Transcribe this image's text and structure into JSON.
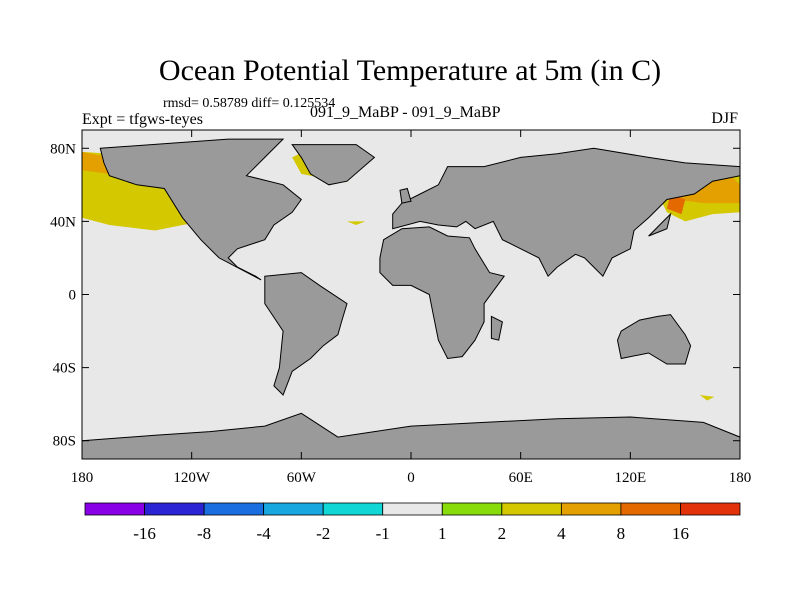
{
  "chart_data": {
    "type": "heatmap",
    "title": "Ocean Potential Temperature at 5m (in C)",
    "stats": "rmsd= 0.58789 diff= 0.125534",
    "expt": "Expt = tfgws-teyes",
    "subtitle": "091_9_MaBP - 091_9_MaBP",
    "season": "DJF",
    "x_range": [
      -180,
      180
    ],
    "y_range": [
      -90,
      90
    ],
    "x_ticks": [
      {
        "value": -180,
        "label": "180"
      },
      {
        "value": -120,
        "label": "120W"
      },
      {
        "value": -60,
        "label": "60W"
      },
      {
        "value": 0,
        "label": "0"
      },
      {
        "value": 60,
        "label": "60E"
      },
      {
        "value": 120,
        "label": "120E"
      },
      {
        "value": 180,
        "label": "180"
      }
    ],
    "y_ticks": [
      {
        "value": 80,
        "label": "80N"
      },
      {
        "value": 40,
        "label": "40N"
      },
      {
        "value": 0,
        "label": "0"
      },
      {
        "value": -40,
        "label": "40S"
      },
      {
        "value": -80,
        "label": "80S"
      }
    ],
    "colorbar": {
      "levels": [
        "-16",
        "-8",
        "-4",
        "-2",
        "-1",
        "1",
        "2",
        "4",
        "8",
        "16"
      ],
      "colors": [
        "#8a00e6",
        "#2a24d4",
        "#1a6ee0",
        "#19a7df",
        "#11d6d6",
        "#e8e8e8",
        "#87dc0a",
        "#d4c800",
        "#e3a000",
        "#e46a00",
        "#e2320a"
      ]
    },
    "land_color": "#9a9a9a",
    "ocean_color": "#e8e8e8",
    "landmasses": [
      {
        "name": "North America",
        "points": [
          [
            -170,
            80
          ],
          [
            -100,
            85
          ],
          [
            -70,
            85
          ],
          [
            -80,
            75
          ],
          [
            -90,
            65
          ],
          [
            -70,
            60
          ],
          [
            -60,
            52
          ],
          [
            -65,
            45
          ],
          [
            -75,
            38
          ],
          [
            -80,
            30
          ],
          [
            -95,
            25
          ],
          [
            -100,
            20
          ],
          [
            -95,
            15
          ],
          [
            -85,
            10
          ],
          [
            -82,
            8
          ],
          [
            -105,
            20
          ],
          [
            -115,
            30
          ],
          [
            -125,
            42
          ],
          [
            -135,
            58
          ],
          [
            -150,
            60
          ],
          [
            -165,
            65
          ],
          [
            -168,
            72
          ]
        ]
      },
      {
        "name": "Greenland",
        "points": [
          [
            -65,
            82
          ],
          [
            -30,
            82
          ],
          [
            -20,
            75
          ],
          [
            -35,
            62
          ],
          [
            -45,
            60
          ],
          [
            -55,
            66
          ],
          [
            -60,
            75
          ]
        ]
      },
      {
        "name": "South America",
        "points": [
          [
            -80,
            10
          ],
          [
            -60,
            12
          ],
          [
            -50,
            5
          ],
          [
            -35,
            -5
          ],
          [
            -38,
            -15
          ],
          [
            -40,
            -22
          ],
          [
            -48,
            -28
          ],
          [
            -55,
            -35
          ],
          [
            -65,
            -42
          ],
          [
            -70,
            -55
          ],
          [
            -75,
            -50
          ],
          [
            -72,
            -40
          ],
          [
            -70,
            -20
          ],
          [
            -80,
            -5
          ]
        ]
      },
      {
        "name": "Eurasia",
        "points": [
          [
            -10,
            36
          ],
          [
            -10,
            44
          ],
          [
            -5,
            50
          ],
          [
            5,
            55
          ],
          [
            15,
            60
          ],
          [
            20,
            70
          ],
          [
            40,
            70
          ],
          [
            60,
            75
          ],
          [
            80,
            77
          ],
          [
            100,
            80
          ],
          [
            130,
            75
          ],
          [
            150,
            72
          ],
          [
            180,
            70
          ],
          [
            180,
            65
          ],
          [
            165,
            62
          ],
          [
            155,
            55
          ],
          [
            140,
            52
          ],
          [
            130,
            42
          ],
          [
            122,
            35
          ],
          [
            120,
            25
          ],
          [
            110,
            20
          ],
          [
            105,
            10
          ],
          [
            100,
            15
          ],
          [
            95,
            20
          ],
          [
            90,
            22
          ],
          [
            80,
            15
          ],
          [
            75,
            10
          ],
          [
            70,
            20
          ],
          [
            60,
            25
          ],
          [
            50,
            30
          ],
          [
            45,
            40
          ],
          [
            35,
            36
          ],
          [
            30,
            40
          ],
          [
            25,
            37
          ],
          [
            15,
            38
          ],
          [
            5,
            40
          ]
        ]
      },
      {
        "name": "Africa",
        "points": [
          [
            -17,
            20
          ],
          [
            -15,
            30
          ],
          [
            -5,
            36
          ],
          [
            10,
            37
          ],
          [
            20,
            32
          ],
          [
            32,
            31
          ],
          [
            35,
            25
          ],
          [
            43,
            12
          ],
          [
            51,
            10
          ],
          [
            40,
            -5
          ],
          [
            40,
            -15
          ],
          [
            35,
            -25
          ],
          [
            28,
            -34
          ],
          [
            20,
            -35
          ],
          [
            15,
            -25
          ],
          [
            12,
            -10
          ],
          [
            10,
            0
          ],
          [
            0,
            5
          ],
          [
            -10,
            5
          ],
          [
            -17,
            12
          ]
        ]
      },
      {
        "name": "Australia",
        "points": [
          [
            115,
            -20
          ],
          [
            125,
            -14
          ],
          [
            135,
            -12
          ],
          [
            142,
            -11
          ],
          [
            150,
            -22
          ],
          [
            153,
            -28
          ],
          [
            150,
            -38
          ],
          [
            140,
            -38
          ],
          [
            130,
            -32
          ],
          [
            115,
            -35
          ],
          [
            113,
            -25
          ]
        ]
      },
      {
        "name": "Antarctica",
        "points": [
          [
            -180,
            -80
          ],
          [
            -140,
            -77
          ],
          [
            -110,
            -75
          ],
          [
            -80,
            -72
          ],
          [
            -60,
            -65
          ],
          [
            -40,
            -78
          ],
          [
            -20,
            -75
          ],
          [
            0,
            -72
          ],
          [
            40,
            -70
          ],
          [
            80,
            -68
          ],
          [
            120,
            -67
          ],
          [
            160,
            -70
          ],
          [
            180,
            -78
          ],
          [
            180,
            -90
          ],
          [
            -180,
            -90
          ]
        ]
      },
      {
        "name": "Madagascar",
        "points": [
          [
            44,
            -12
          ],
          [
            50,
            -15
          ],
          [
            48,
            -25
          ],
          [
            44,
            -24
          ]
        ]
      },
      {
        "name": "Britain",
        "points": [
          [
            -5,
            50
          ],
          [
            0,
            51
          ],
          [
            -2,
            58
          ],
          [
            -6,
            57
          ]
        ]
      },
      {
        "name": "Japan",
        "points": [
          [
            130,
            32
          ],
          [
            140,
            36
          ],
          [
            142,
            44
          ],
          [
            138,
            40
          ],
          [
            132,
            34
          ]
        ]
      }
    ],
    "contours": [
      {
        "level": "2",
        "points": [
          [
            -180,
            78
          ],
          [
            -150,
            76
          ],
          [
            -125,
            72
          ],
          [
            -100,
            60
          ],
          [
            -95,
            50
          ],
          [
            -115,
            40
          ],
          [
            -140,
            35
          ],
          [
            -165,
            38
          ],
          [
            -180,
            42
          ]
        ]
      },
      {
        "level": "4",
        "points": [
          [
            -180,
            78
          ],
          [
            -160,
            74
          ],
          [
            -150,
            70
          ],
          [
            -165,
            66
          ],
          [
            -180,
            68
          ]
        ]
      },
      {
        "level": "2",
        "points": [
          [
            -65,
            75
          ],
          [
            -55,
            80
          ],
          [
            -45,
            70
          ],
          [
            -40,
            62
          ],
          [
            -30,
            60
          ],
          [
            -45,
            63
          ],
          [
            -60,
            66
          ]
        ]
      },
      {
        "level": "2",
        "points": [
          [
            -35,
            40
          ],
          [
            -30,
            38
          ],
          [
            -25,
            40
          ]
        ]
      },
      {
        "level": "2",
        "points": [
          [
            140,
            68
          ],
          [
            165,
            70
          ],
          [
            180,
            70
          ],
          [
            180,
            45
          ],
          [
            165,
            44
          ],
          [
            150,
            40
          ],
          [
            140,
            45
          ],
          [
            135,
            55
          ]
        ]
      },
      {
        "level": "4",
        "points": [
          [
            145,
            65
          ],
          [
            175,
            65
          ],
          [
            180,
            60
          ],
          [
            180,
            50
          ],
          [
            160,
            50
          ],
          [
            145,
            52
          ]
        ]
      },
      {
        "level": "8",
        "points": [
          [
            142,
            55
          ],
          [
            150,
            52
          ],
          [
            148,
            44
          ],
          [
            140,
            47
          ]
        ]
      },
      {
        "level": "2",
        "points": [
          [
            158,
            -55
          ],
          [
            166,
            -56
          ],
          [
            162,
            -58
          ]
        ]
      },
      {
        "level": "-1",
        "points": [
          [
            -112,
            -52
          ],
          [
            -104,
            -52
          ],
          [
            -106,
            -60
          ],
          [
            -112,
            -58
          ]
        ]
      },
      {
        "level": "-1",
        "points": [
          [
            68,
            -37
          ],
          [
            80,
            -37
          ],
          [
            80,
            -42
          ],
          [
            70,
            -42
          ]
        ]
      },
      {
        "level": "-1",
        "points": [
          [
            0,
            -74
          ],
          [
            2,
            -73
          ],
          [
            2,
            -80
          ],
          [
            0,
            -80
          ]
        ]
      },
      {
        "level": "-1",
        "points": [
          [
            -17,
            40
          ],
          [
            -14,
            40
          ],
          [
            -14,
            38
          ]
        ]
      }
    ]
  }
}
